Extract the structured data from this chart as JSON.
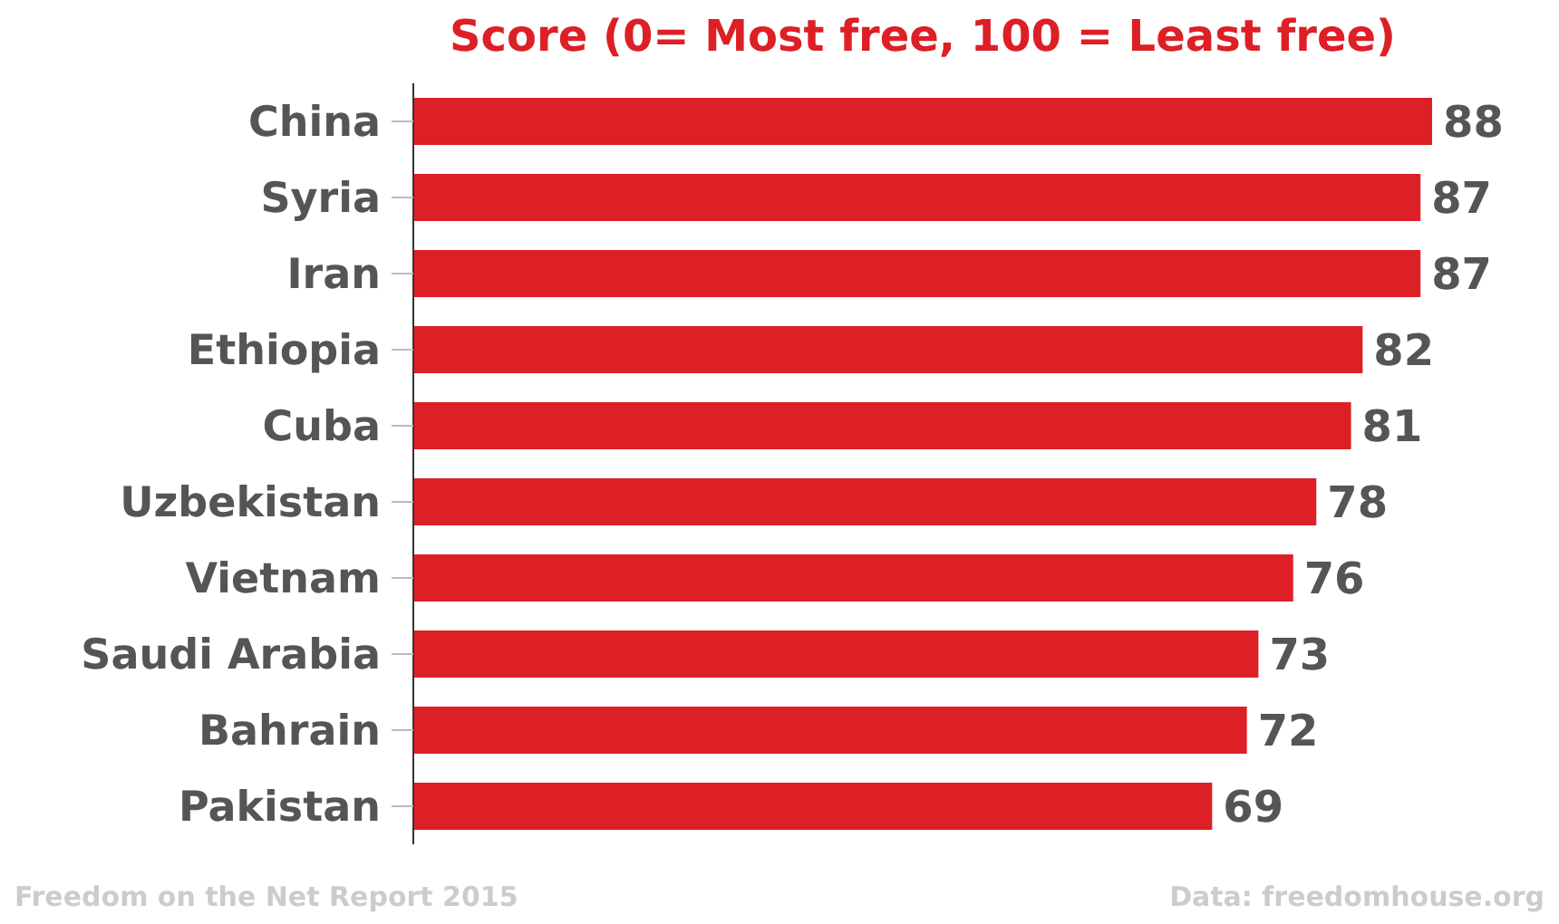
{
  "chart_data": {
    "type": "bar",
    "orientation": "horizontal",
    "title": "Score (0= Most free, 100 = Least free)",
    "categories": [
      "China",
      "Syria",
      "Iran",
      "Ethiopia",
      "Cuba",
      "Uzbekistan",
      "Vietnam",
      "Saudi Arabia",
      "Bahrain",
      "Pakistan"
    ],
    "values": [
      88,
      87,
      87,
      82,
      81,
      78,
      76,
      73,
      72,
      69
    ],
    "color": "#dd1f26",
    "data_labels": true,
    "tick_labels": "y",
    "annotations": [
      "Freedom on the Net Report 2015",
      "Data: freedomhouse.org"
    ]
  }
}
